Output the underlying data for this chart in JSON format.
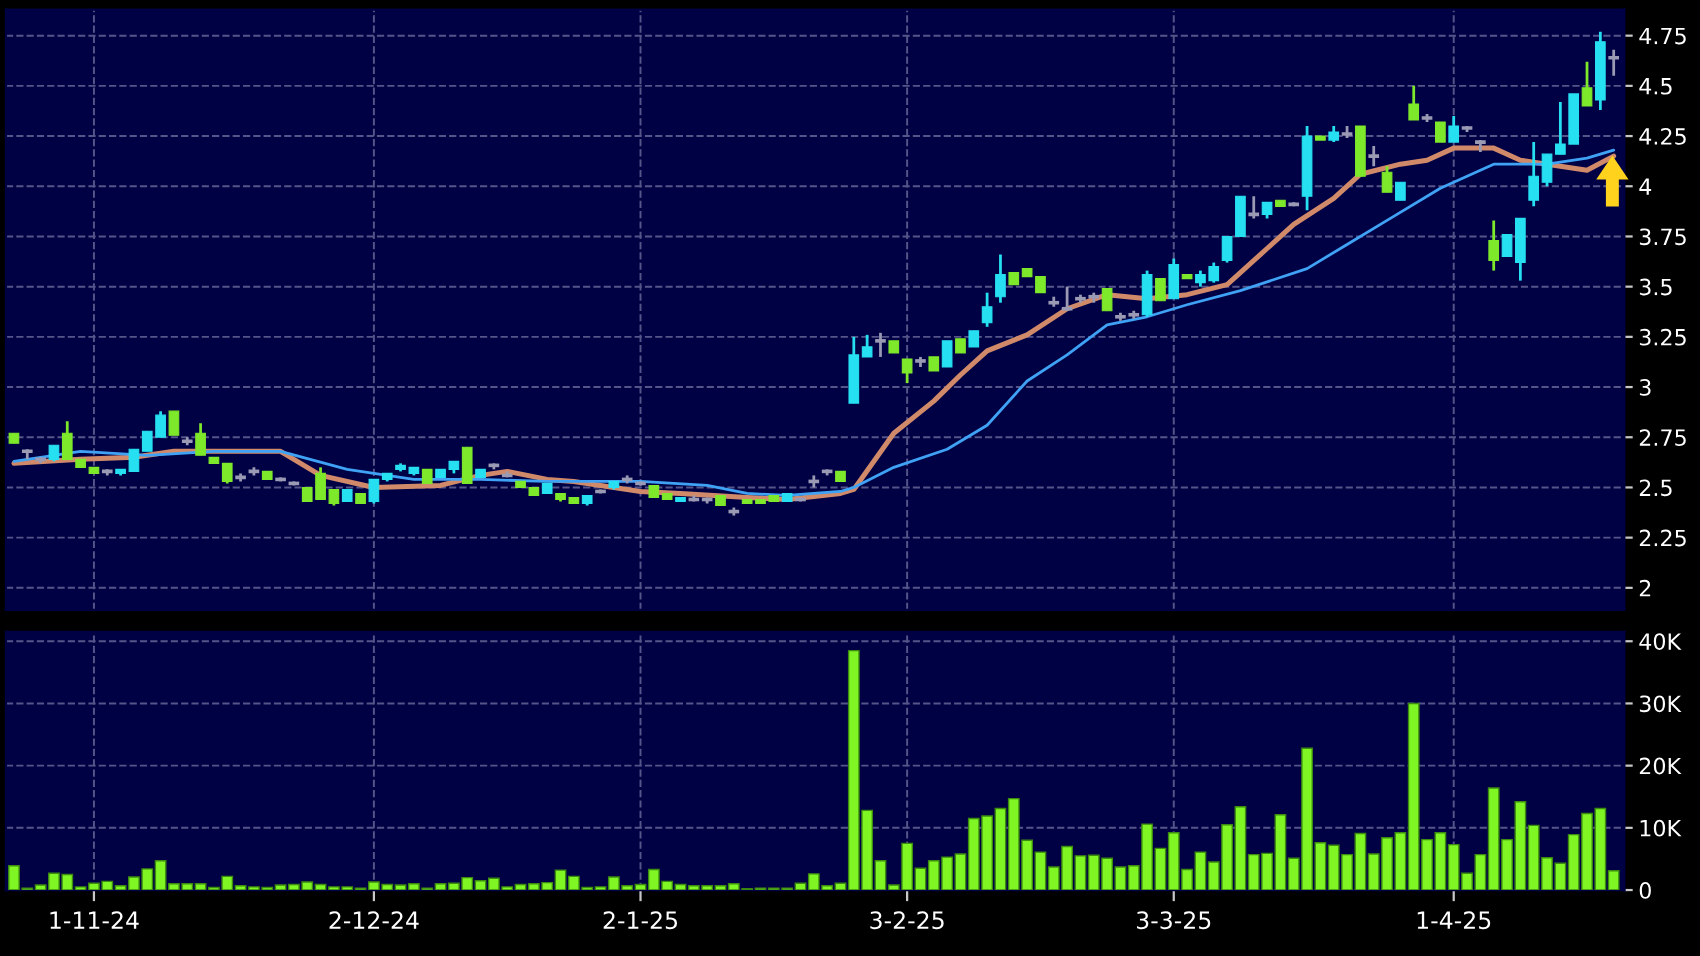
{
  "chart_data": [
    {
      "type": "candlestick",
      "series": [
        {
          "type": "candlestick",
          "ohlc": [
            [
              2.77,
              2.77,
              2.72,
              2.72
            ],
            [
              2.68,
              2.69,
              2.64,
              2.68
            ],
            [
              2.64,
              2.65,
              2.62,
              2.64
            ],
            [
              2.64,
              2.71,
              2.63,
              2.71
            ],
            [
              2.77,
              2.83,
              2.64,
              2.64
            ],
            [
              2.64,
              2.64,
              2.6,
              2.6
            ],
            [
              2.6,
              2.6,
              2.57,
              2.57
            ],
            [
              2.58,
              2.59,
              2.56,
              2.58
            ],
            [
              2.57,
              2.59,
              2.56,
              2.59
            ],
            [
              2.58,
              2.69,
              2.58,
              2.69
            ],
            [
              2.68,
              2.78,
              2.68,
              2.78
            ],
            [
              2.75,
              2.88,
              2.75,
              2.86
            ],
            [
              2.88,
              2.88,
              2.76,
              2.76
            ],
            [
              2.73,
              2.75,
              2.71,
              2.73
            ],
            [
              2.77,
              2.82,
              2.66,
              2.66
            ],
            [
              2.65,
              2.65,
              2.62,
              2.62
            ],
            [
              2.62,
              2.62,
              2.52,
              2.53
            ],
            [
              2.55,
              2.57,
              2.53,
              2.55
            ],
            [
              2.58,
              2.6,
              2.56,
              2.58
            ],
            [
              2.58,
              2.58,
              2.54,
              2.54
            ],
            [
              2.54,
              2.55,
              2.53,
              2.54
            ],
            [
              2.52,
              2.53,
              2.51,
              2.52
            ],
            [
              2.5,
              2.5,
              2.43,
              2.43
            ],
            [
              2.57,
              2.6,
              2.44,
              2.44
            ],
            [
              2.49,
              2.49,
              2.41,
              2.42
            ],
            [
              2.43,
              2.49,
              2.43,
              2.49
            ],
            [
              2.47,
              2.47,
              2.42,
              2.42
            ],
            [
              2.43,
              2.54,
              2.42,
              2.54
            ],
            [
              2.54,
              2.57,
              2.53,
              2.57
            ],
            [
              2.59,
              2.62,
              2.58,
              2.61
            ],
            [
              2.57,
              2.6,
              2.56,
              2.6
            ],
            [
              2.59,
              2.59,
              2.52,
              2.52
            ],
            [
              2.55,
              2.59,
              2.55,
              2.59
            ],
            [
              2.59,
              2.63,
              2.57,
              2.63
            ],
            [
              2.7,
              2.7,
              2.52,
              2.52
            ],
            [
              2.55,
              2.59,
              2.55,
              2.59
            ],
            [
              2.61,
              2.62,
              2.59,
              2.61
            ],
            [
              2.56,
              2.58,
              2.55,
              2.56
            ],
            [
              2.53,
              2.53,
              2.5,
              2.5
            ],
            [
              2.5,
              2.5,
              2.46,
              2.46
            ],
            [
              2.47,
              2.52,
              2.47,
              2.52
            ],
            [
              2.47,
              2.47,
              2.43,
              2.44
            ],
            [
              2.45,
              2.45,
              2.42,
              2.42
            ],
            [
              2.42,
              2.46,
              2.41,
              2.46
            ],
            [
              2.48,
              2.49,
              2.47,
              2.48
            ],
            [
              2.5,
              2.53,
              2.49,
              2.53
            ],
            [
              2.54,
              2.56,
              2.52,
              2.54
            ],
            [
              2.52,
              2.53,
              2.51,
              2.52
            ],
            [
              2.51,
              2.51,
              2.45,
              2.45
            ],
            [
              2.47,
              2.47,
              2.44,
              2.44
            ],
            [
              2.43,
              2.45,
              2.43,
              2.45
            ],
            [
              2.44,
              2.46,
              2.43,
              2.44
            ],
            [
              2.44,
              2.45,
              2.42,
              2.44
            ],
            [
              2.46,
              2.46,
              2.41,
              2.41
            ],
            [
              2.38,
              2.4,
              2.36,
              2.38
            ],
            [
              2.44,
              2.44,
              2.42,
              2.42
            ],
            [
              2.44,
              2.44,
              2.42,
              2.42
            ],
            [
              2.46,
              2.46,
              2.43,
              2.43
            ],
            [
              2.43,
              2.47,
              2.43,
              2.47
            ],
            [
              2.44,
              2.45,
              2.43,
              2.44
            ],
            [
              2.53,
              2.56,
              2.5,
              2.53
            ],
            [
              2.58,
              2.59,
              2.56,
              2.58
            ],
            [
              2.58,
              2.58,
              2.53,
              2.53
            ],
            [
              2.92,
              3.25,
              2.92,
              3.16
            ],
            [
              3.15,
              3.26,
              3.15,
              3.2
            ],
            [
              3.23,
              3.27,
              3.15,
              3.23
            ],
            [
              3.23,
              3.23,
              3.17,
              3.17
            ],
            [
              3.14,
              3.14,
              3.02,
              3.07
            ],
            [
              3.13,
              3.15,
              3.1,
              3.13
            ],
            [
              3.15,
              3.15,
              3.08,
              3.08
            ],
            [
              3.1,
              3.23,
              3.1,
              3.23
            ],
            [
              3.24,
              3.24,
              3.17,
              3.17
            ],
            [
              3.2,
              3.28,
              3.2,
              3.28
            ],
            [
              3.32,
              3.47,
              3.3,
              3.4
            ],
            [
              3.45,
              3.66,
              3.42,
              3.56
            ],
            [
              3.57,
              3.57,
              3.51,
              3.51
            ],
            [
              3.59,
              3.59,
              3.55,
              3.55
            ],
            [
              3.55,
              3.55,
              3.47,
              3.47
            ],
            [
              3.42,
              3.45,
              3.4,
              3.42
            ],
            [
              3.39,
              3.5,
              3.38,
              3.39
            ],
            [
              3.44,
              3.46,
              3.42,
              3.44
            ],
            [
              3.45,
              3.47,
              3.42,
              3.45
            ],
            [
              3.49,
              3.49,
              3.38,
              3.38
            ],
            [
              3.35,
              3.37,
              3.33,
              3.35
            ],
            [
              3.36,
              3.38,
              3.34,
              3.36
            ],
            [
              3.36,
              3.58,
              3.35,
              3.56
            ],
            [
              3.54,
              3.54,
              3.43,
              3.43
            ],
            [
              3.44,
              3.64,
              3.44,
              3.61
            ],
            [
              3.56,
              3.56,
              3.54,
              3.54
            ],
            [
              3.52,
              3.58,
              3.5,
              3.56
            ],
            [
              3.53,
              3.62,
              3.52,
              3.6
            ],
            [
              3.63,
              3.75,
              3.62,
              3.75
            ],
            [
              3.75,
              3.95,
              3.75,
              3.95
            ],
            [
              3.86,
              3.95,
              3.84,
              3.86
            ],
            [
              3.86,
              3.92,
              3.84,
              3.92
            ],
            [
              3.93,
              3.93,
              3.9,
              3.9
            ],
            [
              3.91,
              3.92,
              3.9,
              3.91
            ],
            [
              3.95,
              4.3,
              3.88,
              4.25
            ],
            [
              4.25,
              4.25,
              4.23,
              4.23
            ],
            [
              4.23,
              4.3,
              4.22,
              4.27
            ],
            [
              4.26,
              4.3,
              4.24,
              4.26
            ],
            [
              4.3,
              4.3,
              4.05,
              4.05
            ],
            [
              4.15,
              4.2,
              4.1,
              4.15
            ],
            [
              4.07,
              4.1,
              3.97,
              3.97
            ],
            [
              3.93,
              4.02,
              3.93,
              4.02
            ],
            [
              4.41,
              4.5,
              4.33,
              4.33
            ],
            [
              4.34,
              4.36,
              4.32,
              4.34
            ],
            [
              4.32,
              4.32,
              4.22,
              4.22
            ],
            [
              4.22,
              4.35,
              4.22,
              4.3
            ],
            [
              4.29,
              4.3,
              4.27,
              4.29
            ],
            [
              4.22,
              4.23,
              4.17,
              4.22
            ],
            [
              3.73,
              3.83,
              3.58,
              3.63
            ],
            [
              3.65,
              3.76,
              3.65,
              3.76
            ],
            [
              3.62,
              3.84,
              3.53,
              3.84
            ],
            [
              3.93,
              4.22,
              3.9,
              4.05
            ],
            [
              4.02,
              4.16,
              4.0,
              4.16
            ],
            [
              4.16,
              4.42,
              4.16,
              4.21
            ],
            [
              4.21,
              4.46,
              4.21,
              4.46
            ],
            [
              4.49,
              4.62,
              4.4,
              4.4
            ],
            [
              4.43,
              4.77,
              4.38,
              4.72
            ],
            [
              4.64,
              4.68,
              4.55,
              4.64
            ]
          ],
          "colors": [
            "#7ee82a",
            "#9a9ab4",
            "#9a9ab4",
            "#26e0f2",
            "#7ee82a",
            "#7ee82a",
            "#7ee82a",
            "#9a9ab4",
            "#26e0f2",
            "#26e0f2",
            "#26e0f2",
            "#26e0f2",
            "#7ee82a",
            "#9a9ab4",
            "#7ee82a",
            "#7ee82a",
            "#7ee82a",
            "#9a9ab4",
            "#9a9ab4",
            "#7ee82a",
            "#9a9ab4",
            "#9a9ab4",
            "#7ee82a",
            "#7ee82a",
            "#7ee82a",
            "#26e0f2",
            "#7ee82a",
            "#26e0f2",
            "#26e0f2",
            "#26e0f2",
            "#26e0f2",
            "#7ee82a",
            "#26e0f2",
            "#26e0f2",
            "#7ee82a",
            "#26e0f2",
            "#9a9ab4",
            "#9a9ab4",
            "#7ee82a",
            "#7ee82a",
            "#26e0f2",
            "#7ee82a",
            "#7ee82a",
            "#26e0f2",
            "#9a9ab4",
            "#26e0f2",
            "#9a9ab4",
            "#9a9ab4",
            "#7ee82a",
            "#7ee82a",
            "#26e0f2",
            "#9a9ab4",
            "#9a9ab4",
            "#7ee82a",
            "#9a9ab4",
            "#7ee82a",
            "#7ee82a",
            "#7ee82a",
            "#26e0f2",
            "#9a9ab4",
            "#9a9ab4",
            "#9a9ab4",
            "#7ee82a",
            "#26e0f2",
            "#26e0f2",
            "#9a9ab4",
            "#7ee82a",
            "#7ee82a",
            "#9a9ab4",
            "#7ee82a",
            "#26e0f2",
            "#7ee82a",
            "#26e0f2",
            "#26e0f2",
            "#26e0f2",
            "#7ee82a",
            "#7ee82a",
            "#7ee82a",
            "#9a9ab4",
            "#9a9ab4",
            "#9a9ab4",
            "#9a9ab4",
            "#7ee82a",
            "#9a9ab4",
            "#9a9ab4",
            "#26e0f2",
            "#7ee82a",
            "#26e0f2",
            "#7ee82a",
            "#26e0f2",
            "#26e0f2",
            "#26e0f2",
            "#26e0f2",
            "#9a9ab4",
            "#26e0f2",
            "#7ee82a",
            "#9a9ab4",
            "#26e0f2",
            "#7ee82a",
            "#26e0f2",
            "#9a9ab4",
            "#7ee82a",
            "#9a9ab4",
            "#7ee82a",
            "#26e0f2",
            "#7ee82a",
            "#9a9ab4",
            "#7ee82a",
            "#26e0f2",
            "#9a9ab4",
            "#9a9ab4",
            "#7ee82a",
            "#26e0f2",
            "#26e0f2",
            "#26e0f2",
            "#26e0f2",
            "#26e0f2",
            "#26e0f2",
            "#7ee82a",
            "#26e0f2",
            "#9a9ab4"
          ]
        },
        {
          "type": "line",
          "color": "#d08a6a",
          "values": [
            2.62,
            null,
            null,
            null,
            null,
            2.64,
            null,
            null,
            null,
            2.65,
            null,
            null,
            2.68,
            null,
            null,
            null,
            null,
            2.68,
            null,
            null,
            2.68,
            null,
            null,
            2.56,
            null,
            null,
            null,
            2.5,
            null,
            null,
            null,
            null,
            2.51,
            null,
            null,
            2.56,
            null,
            2.58,
            null,
            null,
            2.54,
            null,
            2.53,
            null,
            null,
            null,
            null,
            2.48,
            null,
            null,
            2.47,
            null,
            null,
            null,
            null,
            2.45,
            null,
            null,
            2.44,
            null,
            null,
            null,
            2.47,
            2.49,
            null,
            null,
            2.77,
            null,
            null,
            2.93,
            null,
            3.06,
            null,
            3.18,
            null,
            null,
            3.26,
            null,
            null,
            3.39,
            null,
            null,
            3.46,
            null,
            null,
            3.44,
            null,
            null,
            3.46,
            null,
            null,
            3.51,
            null,
            null,
            3.69,
            null,
            3.81,
            null,
            null,
            3.94,
            null,
            4.06,
            null,
            null,
            4.11,
            null,
            4.13,
            null,
            4.19,
            null,
            null,
            4.19,
            null,
            4.13,
            null,
            4.11,
            null,
            null,
            4.08,
            null,
            4.15
          ]
        },
        {
          "type": "line",
          "color": "#3fa2f5",
          "values": [
            2.63,
            null,
            null,
            null,
            null,
            2.68,
            null,
            null,
            null,
            null,
            2.66,
            null,
            null,
            null,
            null,
            2.68,
            null,
            null,
            null,
            null,
            2.68,
            null,
            null,
            null,
            null,
            2.59,
            null,
            null,
            null,
            null,
            2.54,
            null,
            null,
            null,
            null,
            2.54,
            null,
            null,
            null,
            null,
            2.53,
            null,
            null,
            null,
            null,
            null,
            null,
            2.53,
            null,
            null,
            null,
            null,
            2.51,
            null,
            null,
            2.47,
            null,
            null,
            2.46,
            null,
            null,
            null,
            2.48,
            2.5,
            null,
            null,
            2.6,
            null,
            null,
            null,
            2.69,
            null,
            null,
            2.81,
            null,
            null,
            3.03,
            null,
            null,
            3.16,
            null,
            null,
            3.31,
            null,
            null,
            3.35,
            null,
            null,
            3.41,
            null,
            null,
            null,
            3.48,
            null,
            null,
            null,
            null,
            3.59,
            null,
            null,
            3.71,
            null,
            null,
            3.83,
            null,
            null,
            null,
            3.99,
            null,
            null,
            null,
            4.11,
            null,
            null,
            null,
            4.11,
            null,
            null,
            4.14,
            null,
            4.18
          ]
        }
      ],
      "ylim": [
        1.89,
        4.88
      ],
      "yticks": [
        2,
        2.25,
        2.5,
        2.75,
        3,
        3.25,
        3.5,
        3.75,
        4,
        4.25,
        4.5,
        4.75
      ],
      "grid": true,
      "tick_labels": "y"
    },
    {
      "type": "bar",
      "categories": [
        null,
        null,
        null,
        null,
        null,
        null,
        "1-11-24",
        null,
        null,
        null,
        null,
        null,
        null,
        null,
        null,
        null,
        null,
        null,
        null,
        null,
        null,
        null,
        null,
        null,
        null,
        null,
        null,
        "2-12-24",
        null,
        null,
        null,
        null,
        null,
        null,
        null,
        null,
        null,
        null,
        null,
        null,
        null,
        null,
        null,
        null,
        null,
        null,
        null,
        "2-1-25",
        null,
        null,
        null,
        null,
        null,
        null,
        null,
        null,
        null,
        null,
        null,
        null,
        null,
        null,
        null,
        null,
        null,
        null,
        null,
        "3-2-25",
        null,
        null,
        null,
        null,
        null,
        null,
        null,
        null,
        null,
        null,
        null,
        null,
        null,
        null,
        null,
        null,
        null,
        null,
        null,
        "3-3-25",
        null,
        null,
        null,
        null,
        null,
        null,
        null,
        null,
        null,
        null,
        null,
        null,
        null,
        null,
        null,
        null,
        null,
        null,
        null,
        null,
        "1-4-25",
        null,
        null,
        null,
        null,
        null,
        null,
        null,
        null,
        null,
        null,
        null,
        null
      ],
      "values": [
        3900,
        300,
        800,
        2700,
        2500,
        500,
        1100,
        1400,
        700,
        2100,
        3400,
        4700,
        1000,
        1000,
        1000,
        400,
        2200,
        700,
        500,
        400,
        800,
        900,
        1300,
        900,
        500,
        500,
        300,
        1300,
        900,
        800,
        1000,
        300,
        1000,
        1100,
        2000,
        1500,
        1900,
        500,
        900,
        1000,
        1200,
        3200,
        2200,
        400,
        500,
        2100,
        700,
        900,
        3300,
        1400,
        900,
        700,
        700,
        700,
        1000,
        200,
        300,
        300,
        300,
        1100,
        2600,
        700,
        1100,
        38500,
        12800,
        4700,
        800,
        7500,
        3500,
        4700,
        5300,
        5800,
        11500,
        11900,
        13100,
        14700,
        8000,
        6100,
        3700,
        7000,
        5500,
        5600,
        5100,
        3700,
        3900,
        10600,
        6700,
        9200,
        3300,
        6100,
        4500,
        10500,
        13400,
        5700,
        5900,
        12100,
        5100,
        22800,
        7600,
        7200,
        5700,
        9100,
        5800,
        8400,
        9200,
        30000,
        8100,
        9200,
        7300,
        2700,
        5700,
        16400,
        8100,
        14200,
        10400,
        5200,
        4300,
        8900,
        12300,
        13100,
        3100
      ],
      "color": "#7ff524",
      "ylim": [
        0,
        41500
      ],
      "yticks": [
        0,
        {
          "value": 10000,
          "label": "10K"
        },
        {
          "value": 20000,
          "label": "20K"
        },
        {
          "value": 30000,
          "label": "30K"
        },
        {
          "value": 40000,
          "label": "40K"
        }
      ],
      "grid": true
    }
  ]
}
